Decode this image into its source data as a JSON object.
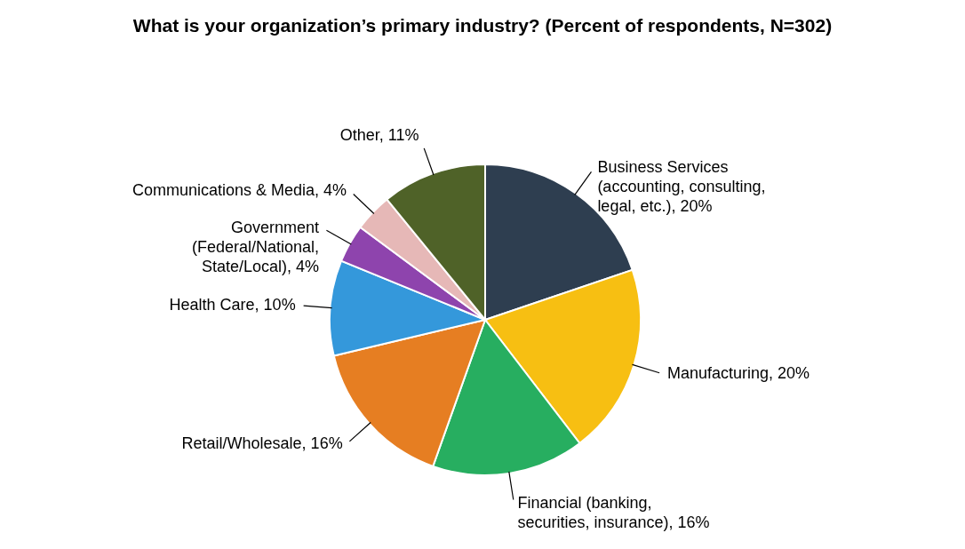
{
  "chart_data": {
    "type": "pie",
    "title": "What is your organization’s primary industry? (Percent of respondents, N=302)",
    "categories": [
      "Business Services (accounting, consulting, legal, etc.)",
      "Manufacturing",
      "Financial (banking, securities, insurance)",
      "Retail/Wholesale",
      "Health Care",
      "Government (Federal/National, State/Local)",
      "Communications & Media",
      "Other"
    ],
    "values": [
      20,
      20,
      16,
      16,
      10,
      4,
      4,
      11
    ],
    "value_labels": [
      "20%",
      "20%",
      "16%",
      "16%",
      "10%",
      "4%",
      "4%",
      "11%"
    ],
    "colors": [
      "#2e3e50",
      "#f7bf12",
      "#27ae60",
      "#e67e22",
      "#3498db",
      "#8e44ad",
      "#e6b8b7",
      "#4f6228"
    ]
  }
}
